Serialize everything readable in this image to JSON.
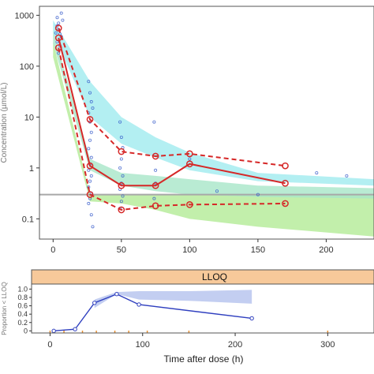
{
  "colors": {
    "panel_border": "#555555",
    "median_line": "#d62828",
    "observed_points": "#2f55c8",
    "band_median": "#a8e6c8",
    "band_outer": "#a6ecf0",
    "band_overlap": "#b7ec9c",
    "lloq_line": "#a8a8a8",
    "strip_fill": "#f7c99a",
    "bottom_line": "#2f3fbf",
    "bottom_band": "#b8c6ef",
    "tick_marks": "#e89030"
  },
  "chart_data": [
    {
      "type": "line",
      "title": "",
      "xlabel": "",
      "ylabel": "Concentration (µmol/L)",
      "y_scale": "log",
      "xlim": [
        -10,
        235
      ],
      "ylim": [
        0.04,
        1500
      ],
      "x_ticks": [
        0,
        50,
        100,
        150,
        200
      ],
      "y_ticks": [
        0.1,
        1,
        10,
        100,
        1000
      ],
      "y_tick_labels": [
        "0.1",
        "1",
        "10",
        "100",
        "1000"
      ],
      "lloq": 0.3,
      "series": [
        {
          "role": "observed median",
          "style": "solid",
          "x": [
            4,
            27,
            50,
            75,
            100,
            170
          ],
          "y": [
            360,
            1.1,
            0.45,
            0.45,
            1.2,
            0.5
          ]
        },
        {
          "role": "observed 95th percentile",
          "style": "dashed",
          "x": [
            4,
            27,
            50,
            75,
            100,
            170
          ],
          "y": [
            560,
            9,
            2.1,
            1.7,
            1.9,
            1.1
          ]
        },
        {
          "role": "observed 5th percentile",
          "style": "dashed",
          "x": [
            4,
            27,
            50,
            75,
            100,
            170
          ],
          "y": [
            230,
            0.3,
            0.15,
            0.18,
            0.19,
            0.2
          ]
        }
      ],
      "prediction_bands": {
        "x": [
          0,
          27,
          50,
          75,
          100,
          150,
          235
        ],
        "upper_hi": [
          800,
          50,
          10,
          4,
          2,
          0.8,
          0.6
        ],
        "upper_lo": [
          450,
          10,
          3,
          1.6,
          0.9,
          0.55,
          0.45
        ],
        "median_hi": [
          500,
          1.5,
          0.8,
          0.7,
          0.6,
          0.45,
          0.4
        ],
        "median_lo": [
          280,
          0.9,
          0.45,
          0.35,
          0.3,
          0.27,
          0.25
        ],
        "lower_hi": [
          300,
          0.3,
          0.3,
          0.3,
          0.3,
          0.3,
          0.3
        ],
        "lower_lo": [
          150,
          0.22,
          0.2,
          0.15,
          0.1,
          0.07,
          0.045
        ]
      },
      "observations": [
        {
          "x": 3,
          "y": 900
        },
        {
          "x": 4,
          "y": 700
        },
        {
          "x": 4,
          "y": 520
        },
        {
          "x": 5,
          "y": 430
        },
        {
          "x": 3,
          "y": 300
        },
        {
          "x": 5,
          "y": 250
        },
        {
          "x": 6,
          "y": 1100
        },
        {
          "x": 4,
          "y": 180
        },
        {
          "x": 6,
          "y": 380
        },
        {
          "x": 3,
          "y": 620
        },
        {
          "x": 7,
          "y": 800
        },
        {
          "x": 2,
          "y": 450
        },
        {
          "x": 26,
          "y": 50
        },
        {
          "x": 27,
          "y": 30
        },
        {
          "x": 28,
          "y": 20
        },
        {
          "x": 26,
          "y": 12
        },
        {
          "x": 27,
          "y": 8
        },
        {
          "x": 28,
          "y": 5
        },
        {
          "x": 27,
          "y": 3.5
        },
        {
          "x": 26,
          "y": 2.4
        },
        {
          "x": 28,
          "y": 1.6
        },
        {
          "x": 27,
          "y": 1.2
        },
        {
          "x": 26,
          "y": 0.9
        },
        {
          "x": 28,
          "y": 0.7
        },
        {
          "x": 27,
          "y": 0.55
        },
        {
          "x": 26,
          "y": 0.42
        },
        {
          "x": 28,
          "y": 0.32
        },
        {
          "x": 27,
          "y": 0.25
        },
        {
          "x": 26,
          "y": 0.2
        },
        {
          "x": 28,
          "y": 0.12
        },
        {
          "x": 29,
          "y": 0.07
        },
        {
          "x": 29,
          "y": 15
        },
        {
          "x": 49,
          "y": 8
        },
        {
          "x": 50,
          "y": 4
        },
        {
          "x": 51,
          "y": 2.5
        },
        {
          "x": 50,
          "y": 1.5
        },
        {
          "x": 49,
          "y": 1
        },
        {
          "x": 51,
          "y": 0.7
        },
        {
          "x": 50,
          "y": 0.5
        },
        {
          "x": 49,
          "y": 0.38
        },
        {
          "x": 51,
          "y": 0.28
        },
        {
          "x": 50,
          "y": 0.22
        },
        {
          "x": 49,
          "y": 0.16
        },
        {
          "x": 74,
          "y": 8
        },
        {
          "x": 75,
          "y": 0.9
        },
        {
          "x": 75,
          "y": 0.5
        },
        {
          "x": 74,
          "y": 0.25
        },
        {
          "x": 100,
          "y": 1.5
        },
        {
          "x": 120,
          "y": 0.35
        },
        {
          "x": 150,
          "y": 0.3
        },
        {
          "x": 193,
          "y": 0.8
        },
        {
          "x": 215,
          "y": 0.7
        }
      ]
    },
    {
      "type": "line",
      "title": "",
      "strip_label": "LLOQ",
      "xlabel": "Time after dose (h)",
      "ylabel": "Proportion < LLOQ",
      "xlim": [
        -20,
        350
      ],
      "ylim": [
        -0.05,
        1.12
      ],
      "x_ticks": [
        0,
        100,
        200,
        300
      ],
      "y_ticks": [
        0,
        0.2,
        0.4,
        0.6,
        0.8,
        1
      ],
      "y_tick_labels": [
        "0",
        "0.2",
        "0.4",
        "0.6",
        "0.8",
        "1.0"
      ],
      "series": [
        {
          "role": "observed proportion",
          "x": [
            4,
            27,
            48,
            72,
            96,
            218
          ],
          "y": [
            0,
            0.04,
            0.67,
            0.88,
            0.63,
            0.3
          ]
        }
      ],
      "prediction_band": {
        "x": [
          48,
          72,
          96,
          150,
          218
        ],
        "hi": [
          0.75,
          0.93,
          0.95,
          0.95,
          0.98
        ],
        "lo": [
          0.55,
          0.88,
          0.75,
          0.72,
          0.65
        ]
      },
      "bin_ticks": [
        0,
        15,
        35,
        50,
        70,
        85,
        105,
        150,
        300
      ]
    }
  ]
}
